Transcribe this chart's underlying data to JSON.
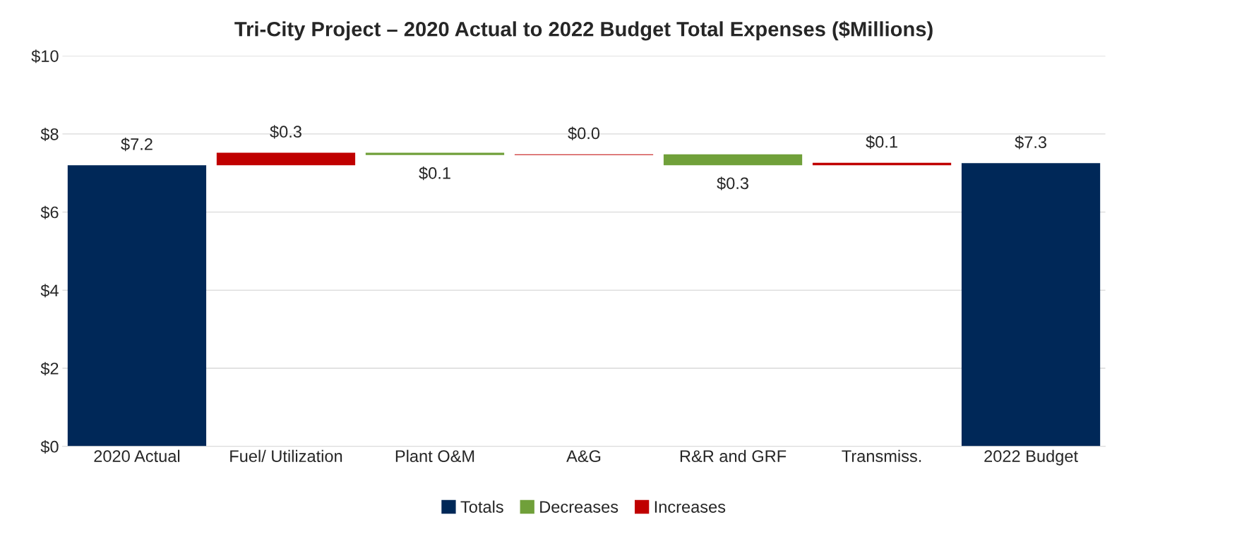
{
  "chart_data": {
    "type": "bar",
    "title": "Tri-City Project – 2020 Actual to 2022 Budget Total Expenses ($Millions)",
    "categories": [
      "2020 Actual",
      "Fuel/ Utilization",
      "Plant O&M",
      "A&G",
      "R&R and GRF",
      "Transmiss.",
      "2022 Budget"
    ],
    "series": [
      {
        "name": "Totals",
        "color": "#002858",
        "values": [
          7.2,
          null,
          null,
          null,
          null,
          null,
          7.25
        ],
        "base": [
          0,
          null,
          null,
          null,
          null,
          null,
          0
        ],
        "value_labels": [
          "$7.2",
          null,
          null,
          null,
          null,
          null,
          "$7.3"
        ]
      },
      {
        "name": "Decreases",
        "color": "#70a03a",
        "values": [
          null,
          null,
          0.06,
          null,
          0.28,
          null,
          null
        ],
        "base": [
          null,
          null,
          7.46,
          null,
          7.2,
          null,
          null
        ],
        "value_labels": [
          null,
          null,
          "$0.1",
          null,
          "$0.3",
          null,
          null
        ]
      },
      {
        "name": "Increases",
        "color": "#c00000",
        "values": [
          null,
          0.32,
          null,
          0.02,
          null,
          0.06,
          null
        ],
        "base": [
          null,
          7.2,
          null,
          7.46,
          null,
          7.2,
          null
        ],
        "value_labels": [
          null,
          "$0.3",
          null,
          "$0.0",
          null,
          "$0.1",
          null
        ]
      }
    ],
    "ylim": [
      0,
      10
    ],
    "yticks": [
      {
        "value": 0,
        "label": "$0"
      },
      {
        "value": 2,
        "label": "$2"
      },
      {
        "value": 4,
        "label": "$4"
      },
      {
        "value": 6,
        "label": "$6"
      },
      {
        "value": 8,
        "label": "$8"
      },
      {
        "value": 10,
        "label": "$10"
      }
    ],
    "grid": "y",
    "legend": "bottom"
  }
}
